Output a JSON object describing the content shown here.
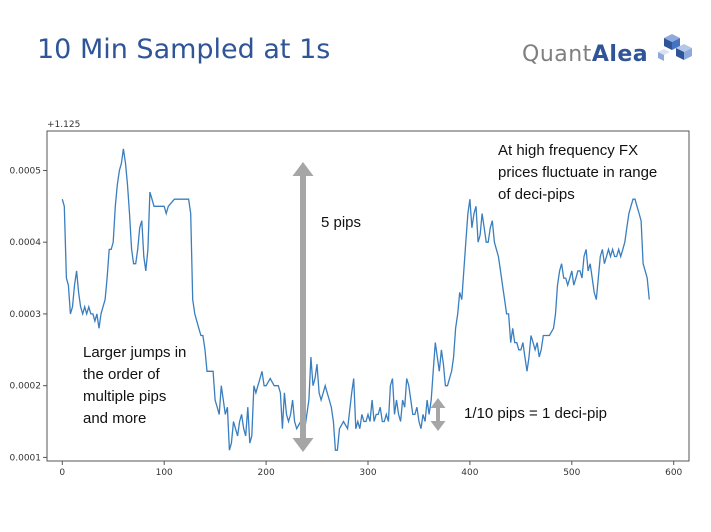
{
  "title": "10 Min Sampled at 1s",
  "logo": {
    "text_light": "Quant",
    "text_strong": "Alea",
    "icon": "cube-logo-icon"
  },
  "chart_data": {
    "type": "line",
    "offset_label": "+1.125",
    "xlim": [
      -15,
      615
    ],
    "ylim": [
      9.5e-05,
      0.000555
    ],
    "xticks": [
      0,
      100,
      200,
      300,
      400,
      500,
      600
    ],
    "yticks": [
      0.0001,
      0.0002,
      0.0003,
      0.0004,
      0.0005
    ],
    "ytick_labels": [
      "0.0001",
      "0.0002",
      "0.0003",
      "0.0004",
      "0.0005"
    ],
    "line_color": "#3a7ebf",
    "series": [
      {
        "points": [
          [
            0,
            0.00046
          ],
          [
            2,
            0.00045
          ],
          [
            4,
            0.00035
          ],
          [
            6,
            0.00034
          ],
          [
            8,
            0.0003
          ],
          [
            10,
            0.00031
          ],
          [
            12,
            0.00034
          ],
          [
            14,
            0.00036
          ],
          [
            16,
            0.00033
          ],
          [
            18,
            0.00031
          ],
          [
            20,
            0.0003
          ],
          [
            22,
            0.00031
          ],
          [
            24,
            0.0003
          ],
          [
            26,
            0.00031
          ],
          [
            28,
            0.0003
          ],
          [
            30,
            0.0003
          ],
          [
            32,
            0.00029
          ],
          [
            34,
            0.0003
          ],
          [
            36,
            0.00028
          ],
          [
            38,
            0.0003
          ],
          [
            40,
            0.00031
          ],
          [
            42,
            0.00032
          ],
          [
            44,
            0.00035
          ],
          [
            46,
            0.00039
          ],
          [
            48,
            0.00039
          ],
          [
            50,
            0.0004
          ],
          [
            52,
            0.00045
          ],
          [
            54,
            0.00048
          ],
          [
            56,
            0.0005
          ],
          [
            58,
            0.00051
          ],
          [
            60,
            0.00053
          ],
          [
            62,
            0.00051
          ],
          [
            64,
            0.00048
          ],
          [
            66,
            0.00044
          ],
          [
            68,
            0.00039
          ],
          [
            70,
            0.00037
          ],
          [
            72,
            0.00037
          ],
          [
            74,
            0.00039
          ],
          [
            76,
            0.00042
          ],
          [
            78,
            0.00043
          ],
          [
            80,
            0.00038
          ],
          [
            82,
            0.00036
          ],
          [
            84,
            0.00039
          ],
          [
            86,
            0.00047
          ],
          [
            88,
            0.00046
          ],
          [
            90,
            0.00045
          ],
          [
            92,
            0.00045
          ],
          [
            96,
            0.00045
          ],
          [
            100,
            0.00045
          ],
          [
            102,
            0.00044
          ],
          [
            104,
            0.00045
          ],
          [
            110,
            0.00046
          ],
          [
            116,
            0.00046
          ],
          [
            120,
            0.00046
          ],
          [
            124,
            0.00046
          ],
          [
            126,
            0.00044
          ],
          [
            128,
            0.00032
          ],
          [
            130,
            0.0003
          ],
          [
            132,
            0.00029
          ],
          [
            134,
            0.00028
          ],
          [
            136,
            0.00027
          ],
          [
            138,
            0.00027
          ],
          [
            140,
            0.00025
          ],
          [
            142,
            0.00022
          ],
          [
            144,
            0.00022
          ],
          [
            146,
            0.00022
          ],
          [
            148,
            0.00022
          ],
          [
            150,
            0.00018
          ],
          [
            152,
            0.00017
          ],
          [
            154,
            0.00016
          ],
          [
            156,
            0.0002
          ],
          [
            158,
            0.00018
          ],
          [
            160,
            0.00016
          ],
          [
            162,
            0.00017
          ],
          [
            164,
            0.00011
          ],
          [
            166,
            0.00012
          ],
          [
            168,
            0.00015
          ],
          [
            170,
            0.00014
          ],
          [
            172,
            0.00013
          ],
          [
            174,
            0.00015
          ],
          [
            176,
            0.00016
          ],
          [
            178,
            0.00014
          ],
          [
            180,
            0.00013
          ],
          [
            182,
            0.00017
          ],
          [
            184,
            0.00012
          ],
          [
            186,
            0.00013
          ],
          [
            188,
            0.0002
          ],
          [
            190,
            0.00019
          ],
          [
            192,
            0.0002
          ],
          [
            194,
            0.00021
          ],
          [
            196,
            0.00022
          ],
          [
            198,
            0.0002
          ],
          [
            200,
            0.0002
          ],
          [
            204,
            0.00021
          ],
          [
            208,
            0.0002
          ],
          [
            212,
            0.0002
          ],
          [
            214,
            0.00019
          ],
          [
            216,
            0.00014
          ],
          [
            218,
            0.00019
          ],
          [
            220,
            0.00016
          ],
          [
            222,
            0.00015
          ],
          [
            224,
            0.00016
          ],
          [
            226,
            0.00018
          ],
          [
            228,
            0.00015
          ],
          [
            230,
            0.00014
          ],
          [
            234,
            0.00015
          ],
          [
            238,
            0.00014
          ],
          [
            242,
            0.00018
          ],
          [
            244,
            0.00024
          ],
          [
            246,
            0.0002
          ],
          [
            248,
            0.00021
          ],
          [
            250,
            0.00023
          ],
          [
            252,
            0.00019
          ],
          [
            254,
            0.00018
          ],
          [
            256,
            0.00019
          ],
          [
            258,
            0.0002
          ],
          [
            260,
            0.00019
          ],
          [
            262,
            0.00018
          ],
          [
            264,
            0.00017
          ],
          [
            266,
            0.00015
          ],
          [
            268,
            0.00011
          ],
          [
            270,
            0.00011
          ],
          [
            272,
            0.00014
          ],
          [
            276,
            0.00015
          ],
          [
            280,
            0.00014
          ],
          [
            284,
            0.00019
          ],
          [
            286,
            0.00021
          ],
          [
            288,
            0.00014
          ],
          [
            290,
            0.00015
          ],
          [
            292,
            0.00014
          ],
          [
            294,
            0.00016
          ],
          [
            296,
            0.00015
          ],
          [
            298,
            0.00015
          ],
          [
            300,
            0.00016
          ],
          [
            302,
            0.00015
          ],
          [
            304,
            0.00018
          ],
          [
            306,
            0.00015
          ],
          [
            308,
            0.00016
          ],
          [
            310,
            0.00016
          ],
          [
            312,
            0.00017
          ],
          [
            314,
            0.00015
          ],
          [
            316,
            0.00015
          ],
          [
            318,
            0.00016
          ],
          [
            320,
            0.00015
          ],
          [
            322,
            0.0002
          ],
          [
            324,
            0.00021
          ],
          [
            326,
            0.00016
          ],
          [
            328,
            0.00018
          ],
          [
            330,
            0.00016
          ],
          [
            332,
            0.00015
          ],
          [
            334,
            0.00018
          ],
          [
            336,
            0.00017
          ],
          [
            338,
            0.00021
          ],
          [
            340,
            0.0002
          ],
          [
            342,
            0.00018
          ],
          [
            344,
            0.00016
          ],
          [
            346,
            0.00016
          ],
          [
            348,
            0.00017
          ],
          [
            350,
            0.00015
          ],
          [
            352,
            0.00014
          ],
          [
            354,
            0.00016
          ],
          [
            356,
            0.00015
          ],
          [
            358,
            0.00018
          ],
          [
            360,
            0.00016
          ],
          [
            362,
            0.00018
          ],
          [
            364,
            0.00022
          ],
          [
            366,
            0.00026
          ],
          [
            368,
            0.00024
          ],
          [
            370,
            0.00022
          ],
          [
            372,
            0.00025
          ],
          [
            374,
            0.00023
          ],
          [
            376,
            0.0002
          ],
          [
            378,
            0.0002
          ],
          [
            380,
            0.00021
          ],
          [
            382,
            0.00022
          ],
          [
            384,
            0.00024
          ],
          [
            386,
            0.00028
          ],
          [
            388,
            0.0003
          ],
          [
            390,
            0.00033
          ],
          [
            392,
            0.00032
          ],
          [
            394,
            0.00036
          ],
          [
            396,
            0.0004
          ],
          [
            398,
            0.00044
          ],
          [
            400,
            0.00046
          ],
          [
            402,
            0.00042
          ],
          [
            404,
            0.00044
          ],
          [
            406,
            0.00045
          ],
          [
            408,
            0.0004
          ],
          [
            410,
            0.00041
          ],
          [
            412,
            0.00044
          ],
          [
            414,
            0.00042
          ],
          [
            416,
            0.0004
          ],
          [
            418,
            0.0004
          ],
          [
            420,
            0.00042
          ],
          [
            422,
            0.00043
          ],
          [
            424,
            0.0004
          ],
          [
            426,
            0.00039
          ],
          [
            428,
            0.00038
          ],
          [
            430,
            0.00036
          ],
          [
            432,
            0.00034
          ],
          [
            434,
            0.00032
          ],
          [
            436,
            0.0003
          ],
          [
            438,
            0.0003
          ],
          [
            440,
            0.00026
          ],
          [
            442,
            0.00028
          ],
          [
            444,
            0.00026
          ],
          [
            446,
            0.00026
          ],
          [
            448,
            0.00025
          ],
          [
            450,
            0.00025
          ],
          [
            452,
            0.00026
          ],
          [
            454,
            0.00024
          ],
          [
            456,
            0.00022
          ],
          [
            458,
            0.00024
          ],
          [
            460,
            0.00027
          ],
          [
            462,
            0.00026
          ],
          [
            464,
            0.00025
          ],
          [
            466,
            0.00026
          ],
          [
            468,
            0.00024
          ],
          [
            470,
            0.00025
          ],
          [
            472,
            0.00027
          ],
          [
            474,
            0.00027
          ],
          [
            478,
            0.00027
          ],
          [
            482,
            0.00028
          ],
          [
            484,
            0.0003
          ],
          [
            486,
            0.00034
          ],
          [
            488,
            0.00036
          ],
          [
            490,
            0.00037
          ],
          [
            492,
            0.00035
          ],
          [
            494,
            0.00035
          ],
          [
            496,
            0.00034
          ],
          [
            498,
            0.00035
          ],
          [
            500,
            0.00036
          ],
          [
            502,
            0.00034
          ],
          [
            504,
            0.00035
          ],
          [
            506,
            0.00036
          ],
          [
            508,
            0.00036
          ],
          [
            510,
            0.00035
          ],
          [
            512,
            0.00038
          ],
          [
            514,
            0.00039
          ],
          [
            516,
            0.00036
          ],
          [
            518,
            0.00037
          ],
          [
            520,
            0.00035
          ],
          [
            522,
            0.00033
          ],
          [
            524,
            0.00032
          ],
          [
            526,
            0.00035
          ],
          [
            528,
            0.00038
          ],
          [
            530,
            0.00039
          ],
          [
            532,
            0.00037
          ],
          [
            534,
            0.00038
          ],
          [
            536,
            0.00039
          ],
          [
            538,
            0.00038
          ],
          [
            540,
            0.00039
          ],
          [
            542,
            0.00038
          ],
          [
            544,
            0.00038
          ],
          [
            546,
            0.00039
          ],
          [
            548,
            0.00038
          ],
          [
            550,
            0.00039
          ],
          [
            552,
            0.0004
          ],
          [
            554,
            0.00042
          ],
          [
            556,
            0.00044
          ],
          [
            558,
            0.00045
          ],
          [
            560,
            0.00046
          ],
          [
            562,
            0.00046
          ],
          [
            564,
            0.00045
          ],
          [
            566,
            0.00044
          ],
          [
            568,
            0.00043
          ],
          [
            570,
            0.00037
          ],
          [
            572,
            0.00036
          ],
          [
            574,
            0.00035
          ],
          [
            576,
            0.00032
          ]
        ]
      }
    ]
  },
  "annotations": {
    "five_pips": "5 pips",
    "high_freq": [
      "At high frequency FX",
      "prices fluctuate in range",
      "of deci-pips"
    ],
    "larger_jumps": [
      "Larger jumps in",
      "the order of",
      "multiple pips",
      "and more"
    ],
    "deci_pip": "1/10 pips = 1 deci-pip",
    "arrow_color": "#a6a6a6"
  }
}
